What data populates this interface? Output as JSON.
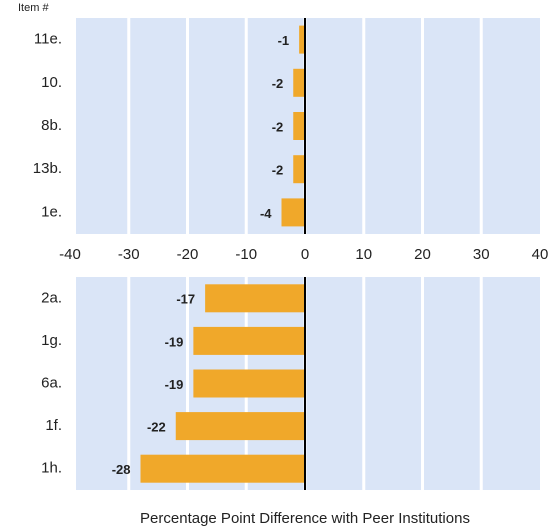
{
  "chart_data": [
    {
      "type": "bar",
      "orientation": "horizontal",
      "y_label": "Item #",
      "categories": [
        "11e.",
        "10.",
        "8b.",
        "13b.",
        "1e."
      ],
      "values": [
        -1,
        -2,
        -2,
        -2,
        -4
      ],
      "color": "#f0a82a",
      "xlim": [
        -40,
        40
      ],
      "xticks": [
        -40,
        -30,
        -20,
        -10,
        0,
        10,
        20,
        30,
        40
      ],
      "grid": true
    },
    {
      "type": "bar",
      "orientation": "horizontal",
      "x_label": "Percentage Point Difference with Peer Institutions",
      "categories": [
        "2a.",
        "1g.",
        "6a.",
        "1f.",
        "1h."
      ],
      "values": [
        -17,
        -19,
        -19,
        -22,
        -28
      ],
      "color": "#f0a82a",
      "xlim": [
        -40,
        40
      ],
      "grid": true
    }
  ]
}
